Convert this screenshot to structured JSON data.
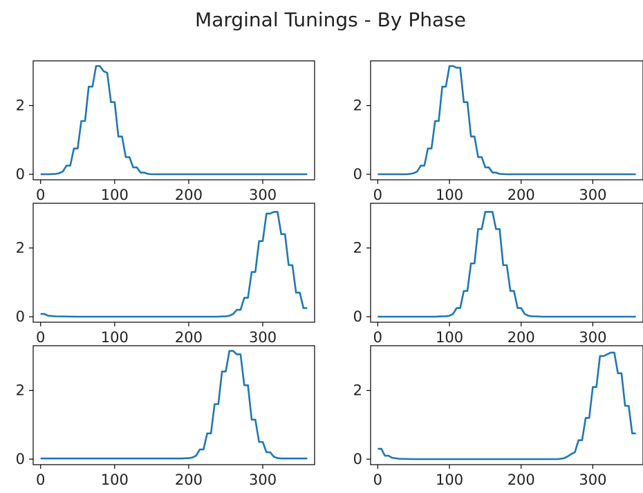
{
  "figure": {
    "title": "Marginal Tunings - By Phase"
  },
  "chart_data": [
    {
      "type": "line",
      "title": "",
      "xlabel": "",
      "ylabel": "",
      "xlim": [
        -10,
        370
      ],
      "ylim": [
        -0.16,
        3.3
      ],
      "xticks": [
        0,
        100,
        200,
        300
      ],
      "yticks": [
        0,
        2
      ],
      "grid": false,
      "series": [
        {
          "color": "#1f77b4",
          "x": [
            0,
            10,
            20,
            25,
            30,
            35,
            40,
            45,
            50,
            55,
            60,
            65,
            70,
            75,
            80,
            85,
            90,
            95,
            100,
            105,
            110,
            115,
            120,
            125,
            130,
            135,
            140,
            145,
            150,
            160,
            200,
            250,
            300,
            360
          ],
          "y": [
            0,
            0,
            0.01,
            0.03,
            0.08,
            0.25,
            0.25,
            0.75,
            0.75,
            1.55,
            1.55,
            2.55,
            2.55,
            3.15,
            3.15,
            3.0,
            2.95,
            2.1,
            2.1,
            1.1,
            1.1,
            0.5,
            0.5,
            0.2,
            0.2,
            0.05,
            0.05,
            0.01,
            0,
            0,
            0,
            0,
            0,
            0
          ]
        }
      ]
    },
    {
      "type": "line",
      "title": "",
      "xlabel": "",
      "ylabel": "",
      "xlim": [
        -10,
        370
      ],
      "ylim": [
        -0.16,
        3.3
      ],
      "xticks": [
        0,
        100,
        200,
        300
      ],
      "yticks": [
        0,
        2
      ],
      "grid": false,
      "series": [
        {
          "color": "#1f77b4",
          "x": [
            0,
            20,
            40,
            45,
            50,
            55,
            60,
            65,
            70,
            75,
            80,
            85,
            90,
            95,
            100,
            105,
            110,
            115,
            120,
            125,
            130,
            135,
            140,
            145,
            150,
            155,
            160,
            165,
            170,
            180,
            220,
            300,
            360
          ],
          "y": [
            0,
            0,
            0,
            0.01,
            0.03,
            0.08,
            0.25,
            0.25,
            0.75,
            0.75,
            1.55,
            1.55,
            2.55,
            2.55,
            3.15,
            3.15,
            3.1,
            3.1,
            2.1,
            2.1,
            1.1,
            1.1,
            0.5,
            0.5,
            0.2,
            0.2,
            0.05,
            0.05,
            0.01,
            0,
            0,
            0,
            0
          ]
        }
      ]
    },
    {
      "type": "line",
      "title": "",
      "xlabel": "",
      "ylabel": "",
      "xlim": [
        -10,
        370
      ],
      "ylim": [
        -0.16,
        3.3
      ],
      "xticks": [
        0,
        100,
        200,
        300
      ],
      "yticks": [
        0,
        2
      ],
      "grid": false,
      "series": [
        {
          "color": "#1f77b4",
          "x": [
            0,
            5,
            10,
            20,
            50,
            100,
            150,
            200,
            230,
            240,
            245,
            250,
            255,
            260,
            265,
            270,
            275,
            280,
            285,
            290,
            295,
            300,
            305,
            310,
            315,
            320,
            325,
            330,
            335,
            340,
            345,
            350,
            355,
            360
          ],
          "y": [
            0.08,
            0.08,
            0.03,
            0.01,
            0,
            0,
            0,
            0,
            0,
            0,
            0.01,
            0.01,
            0.03,
            0.08,
            0.2,
            0.2,
            0.55,
            0.55,
            1.3,
            1.3,
            2.2,
            2.2,
            3.0,
            3.0,
            3.05,
            3.05,
            2.4,
            2.4,
            1.5,
            1.5,
            0.7,
            0.7,
            0.25,
            0.25
          ]
        }
      ]
    },
    {
      "type": "line",
      "title": "",
      "xlabel": "",
      "ylabel": "",
      "xlim": [
        -10,
        370
      ],
      "ylim": [
        -0.16,
        3.3
      ],
      "xticks": [
        0,
        100,
        200,
        300
      ],
      "yticks": [
        0,
        2
      ],
      "grid": false,
      "series": [
        {
          "color": "#1f77b4",
          "x": [
            0,
            40,
            80,
            90,
            95,
            100,
            105,
            110,
            115,
            120,
            125,
            130,
            135,
            140,
            145,
            150,
            155,
            160,
            165,
            170,
            175,
            180,
            185,
            190,
            195,
            200,
            205,
            210,
            215,
            220,
            230,
            260,
            300,
            360
          ],
          "y": [
            0,
            0,
            0,
            0.01,
            0.01,
            0.03,
            0.08,
            0.25,
            0.25,
            0.75,
            0.75,
            1.55,
            1.55,
            2.55,
            2.55,
            3.05,
            3.05,
            3.05,
            2.55,
            2.55,
            1.5,
            1.5,
            0.75,
            0.75,
            0.25,
            0.25,
            0.08,
            0.03,
            0.01,
            0.01,
            0,
            0,
            0,
            0
          ]
        }
      ]
    },
    {
      "type": "line",
      "title": "",
      "xlabel": "",
      "ylabel": "",
      "xlim": [
        -10,
        370
      ],
      "ylim": [
        -0.16,
        3.3
      ],
      "xticks": [
        0,
        100,
        200,
        300
      ],
      "yticks": [
        0,
        2
      ],
      "grid": false,
      "series": [
        {
          "color": "#1f77b4",
          "x": [
            0,
            50,
            100,
            150,
            190,
            200,
            205,
            210,
            215,
            220,
            225,
            230,
            235,
            240,
            245,
            250,
            255,
            260,
            265,
            270,
            275,
            280,
            285,
            290,
            295,
            300,
            305,
            310,
            315,
            320,
            325,
            330,
            340,
            360
          ],
          "y": [
            0.02,
            0.02,
            0.02,
            0.02,
            0.02,
            0.03,
            0.05,
            0.1,
            0.28,
            0.28,
            0.75,
            0.75,
            1.6,
            1.6,
            2.55,
            2.55,
            3.15,
            3.15,
            3.05,
            3.05,
            2.15,
            2.15,
            1.15,
            1.15,
            0.5,
            0.5,
            0.2,
            0.2,
            0.07,
            0.03,
            0.02,
            0.02,
            0.02,
            0.02
          ]
        }
      ]
    },
    {
      "type": "line",
      "title": "",
      "xlabel": "",
      "ylabel": "",
      "xlim": [
        -10,
        370
      ],
      "ylim": [
        -0.16,
        3.3
      ],
      "xticks": [
        0,
        100,
        200,
        300
      ],
      "yticks": [
        0,
        2
      ],
      "grid": false,
      "series": [
        {
          "color": "#1f77b4",
          "x": [
            0,
            5,
            10,
            15,
            20,
            30,
            50,
            100,
            150,
            200,
            250,
            255,
            260,
            265,
            270,
            275,
            280,
            285,
            290,
            295,
            300,
            305,
            310,
            315,
            320,
            325,
            330,
            335,
            340,
            345,
            350,
            355,
            360
          ],
          "y": [
            0.3,
            0.3,
            0.1,
            0.1,
            0.04,
            0.01,
            0,
            0,
            0,
            0,
            0,
            0.01,
            0.03,
            0.08,
            0.15,
            0.2,
            0.55,
            0.55,
            1.2,
            1.2,
            2.1,
            2.1,
            3.0,
            3.0,
            3.05,
            3.1,
            3.1,
            2.5,
            2.5,
            1.55,
            1.55,
            0.75,
            0.75
          ]
        }
      ]
    }
  ]
}
